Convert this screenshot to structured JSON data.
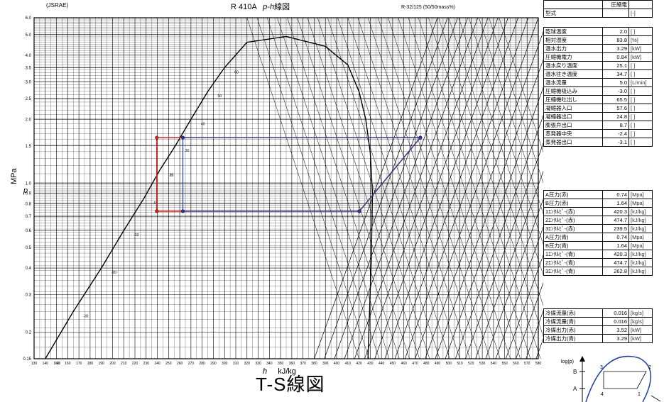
{
  "header": {
    "source": "(JSRAE)",
    "refrigerant": "R 410A",
    "chart_name_p": "p",
    "chart_name_dash": "-",
    "chart_name_h": "h",
    "chart_name_suffix": "線図",
    "composition": "R-32/125 (50/50mass%)"
  },
  "figure_title": "T-S線図",
  "panel": {
    "top": [
      {
        "label": "",
        "value": "圧縮電",
        "unit": ""
      },
      {
        "label": "型式",
        "value": "",
        "unit": "[-]"
      }
    ],
    "conditions": [
      {
        "label": "乾球温度",
        "value": "2.0",
        "unit": "[ ]"
      },
      {
        "label": "相対湿度",
        "value": "83.8",
        "unit": "[%]"
      },
      {
        "label": "温水出力",
        "value": "3.29",
        "unit": "[kW]"
      },
      {
        "label": "圧縮機電力",
        "value": "0.84",
        "unit": "[kW]"
      },
      {
        "label": "温水戻り温度",
        "value": "25.1",
        "unit": "[ ]"
      },
      {
        "label": "温水往き温度",
        "value": "34.7",
        "unit": "[ ]"
      },
      {
        "label": "温水流量",
        "value": "5.0",
        "unit": "[L/min]"
      },
      {
        "label": "圧縮機吸込み",
        "value": "-3.0",
        "unit": "[ ]"
      },
      {
        "label": "圧縮機吐出し",
        "value": "65.5",
        "unit": "[ ]"
      },
      {
        "label": "凝縮器入口",
        "value": "57.6",
        "unit": "[ ]"
      },
      {
        "label": "凝縮器出口",
        "value": "24.8",
        "unit": "[ ]"
      },
      {
        "label": "膨張弁出口",
        "value": "8.7",
        "unit": "[ ]"
      },
      {
        "label": "蒸発器中央",
        "value": "-2.4",
        "unit": "[ ]"
      },
      {
        "label": "蒸発器出口",
        "value": "-3.1",
        "unit": "[ ]"
      }
    ],
    "states": [
      {
        "label": "A圧力(赤)",
        "value": "0.74",
        "unit": "[Mpa]"
      },
      {
        "label": "B圧力(赤)",
        "value": "1.64",
        "unit": "[Mpa]"
      },
      {
        "label": "1ｴﾝﾀﾙﾋﾟ-(赤)",
        "value": "420.3",
        "unit": "[kJ/kg]"
      },
      {
        "label": "2ｴﾝﾀﾙﾋﾟ-(赤)",
        "value": "474.7",
        "unit": "[kJ/kg]"
      },
      {
        "label": "3ｴﾝﾀﾙﾋﾟ-(赤)",
        "value": "239.5",
        "unit": "[kJ/kg]"
      },
      {
        "label": "A圧力(青)",
        "value": "0.74",
        "unit": "[Mpa]"
      },
      {
        "label": "B圧力(青)",
        "value": "1.64",
        "unit": "[Mpa]"
      },
      {
        "label": "1ｴﾝﾀﾙﾋﾟ-(青)",
        "value": "420.3",
        "unit": "[kJ/kg]"
      },
      {
        "label": "2ｴﾝﾀﾙﾋﾟ-(青)",
        "value": "474.7",
        "unit": "[kJ/kg]"
      },
      {
        "label": "3ｴﾝﾀﾙﾋﾟ-(青)",
        "value": "262.8",
        "unit": "[kJ/kg]"
      }
    ],
    "flows": [
      {
        "label": "冷媒流量(赤)",
        "value": "0.016",
        "unit": "[kg/s]"
      },
      {
        "label": "冷媒流量(青)",
        "value": "0.016",
        "unit": "[kg/s]"
      },
      {
        "label": "冷媒出力(赤)",
        "value": "3.52",
        "unit": "[kW]"
      },
      {
        "label": "冷媒出力(青)",
        "value": "3.29",
        "unit": "[kW]"
      }
    ]
  },
  "inset": {
    "ylabel": "log(p)",
    "label_A": "A",
    "label_B": "B",
    "point_labels": [
      "1",
      "2",
      "3",
      "4"
    ]
  },
  "chart_data": {
    "type": "line",
    "xlabel_symbol": "h",
    "xlabel_unit": "kJ/kg",
    "ylabel_symbol": "p",
    "ylabel_unit": "MPa",
    "xlim": [
      130,
      580
    ],
    "ylim": [
      0.15,
      6.0
    ],
    "y_scale": "log",
    "x_ticks": [
      130,
      140,
      150,
      160,
      170,
      180,
      190,
      200,
      210,
      220,
      230,
      240,
      250,
      260,
      270,
      280,
      290,
      300,
      310,
      320,
      330,
      340,
      350,
      360,
      370,
      380,
      390,
      400,
      410,
      420,
      430,
      440,
      450,
      460,
      470,
      480,
      490,
      500,
      510,
      520,
      530,
      540,
      550,
      560,
      570,
      580
    ],
    "y_ticks": [
      0.15,
      0.2,
      0.3,
      0.4,
      0.5,
      0.6,
      0.7,
      0.8,
      0.9,
      1.0,
      1.5,
      2.0,
      2.5,
      3.0,
      3.5,
      4.0,
      5.0,
      6.0
    ],
    "saturation_dome": {
      "liquid_h": [
        140,
        165,
        190,
        210,
        228,
        242,
        256,
        270,
        285,
        300,
        320
      ],
      "liquid_p": [
        0.15,
        0.25,
        0.4,
        0.6,
        0.85,
        1.15,
        1.5,
        2.0,
        2.7,
        3.5,
        4.6
      ],
      "vapor_h": [
        320,
        355,
        390,
        410,
        420,
        426,
        430,
        432,
        431,
        428
      ],
      "vapor_p": [
        4.6,
        4.9,
        4.4,
        3.6,
        2.7,
        2.0,
        1.4,
        0.9,
        0.45,
        0.15
      ]
    },
    "temperature_labels": [
      "60",
      "50",
      "40",
      "30",
      "20",
      "10",
      "0",
      "-10",
      "-20",
      "-30",
      "-40"
    ],
    "series": [
      {
        "name": "赤",
        "color": "#e02020",
        "h": [
          239.5,
          239.5,
          420.3,
          474.7,
          239.5
        ],
        "p": [
          1.64,
          0.74,
          0.74,
          1.64,
          1.64
        ]
      },
      {
        "name": "青",
        "color": "#1f3fa8",
        "h": [
          262.8,
          262.8,
          420.3,
          474.7,
          262.8
        ],
        "p": [
          1.64,
          0.74,
          0.74,
          1.64,
          1.64
        ]
      }
    ]
  }
}
